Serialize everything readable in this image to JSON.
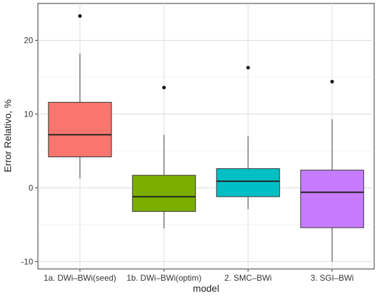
{
  "chart_data": {
    "type": "boxplot",
    "xlabel": "model",
    "ylabel": "Error Relativo, %",
    "ylim": [
      -11,
      25
    ],
    "yticks": [
      -10,
      0,
      10,
      20
    ],
    "ytick_labels": [
      "-10",
      "0",
      "10",
      "20"
    ],
    "grid": true,
    "legend": "none",
    "categories": [
      "1a. DWi–BWi(seed)",
      "1b. DWi–BWi(optim)",
      "2. SMC–BWi",
      "3. SGI–BWi"
    ],
    "boxes": [
      {
        "category": "1a. DWi–BWi(seed)",
        "whisker_low": 1.3,
        "q1": 4.2,
        "median": 7.2,
        "q3": 11.6,
        "whisker_high": 18.2,
        "outliers": [
          23.3
        ],
        "color": "#F8766D"
      },
      {
        "category": "1b. DWi–BWi(optim)",
        "whisker_low": -5.5,
        "q1": -3.2,
        "median": -1.2,
        "q3": 1.7,
        "whisker_high": 7.2,
        "outliers": [
          13.6
        ],
        "color": "#7CAE00"
      },
      {
        "category": "2. SMC–BWi",
        "whisker_low": -2.9,
        "q1": -1.2,
        "median": 0.9,
        "q3": 2.6,
        "whisker_high": 7.0,
        "outliers": [
          16.3
        ],
        "color": "#00BFC4"
      },
      {
        "category": "3. SGI–BWi",
        "whisker_low": -10.0,
        "q1": -5.4,
        "median": -0.6,
        "q3": 2.4,
        "whisker_high": 9.3,
        "outliers": [
          14.4
        ],
        "color": "#C77CFF"
      }
    ]
  }
}
